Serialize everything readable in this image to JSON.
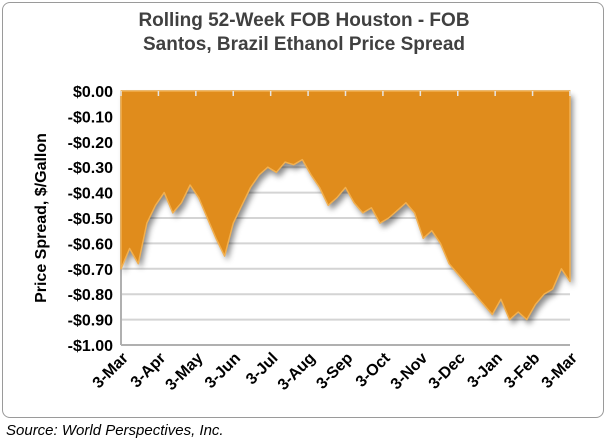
{
  "chart_data": {
    "type": "area",
    "title_line1": "Rolling 52-Week FOB Houston - FOB",
    "title_line2": "Santos, Brazil Ethanol Price Spread",
    "ylabel": "Price Spread, $/Gallon",
    "xlabel": "",
    "ylim": [
      -1.0,
      0.0
    ],
    "yticks": [
      "$0.00",
      "-$0.10",
      "-$0.20",
      "-$0.30",
      "-$0.40",
      "-$0.50",
      "-$0.60",
      "-$0.70",
      "-$0.80",
      "-$0.90",
      "-$1.00"
    ],
    "xticks": [
      "3-Mar",
      "3-Apr",
      "3-May",
      "3-Jun",
      "3-Jul",
      "3-Aug",
      "3-Sep",
      "3-Oct",
      "3-Nov",
      "3-Dec",
      "3-Jan",
      "3-Feb",
      "3-Mar"
    ],
    "grid": true,
    "fill_color": "#E08C1E",
    "values": [
      -0.7,
      -0.62,
      -0.68,
      -0.52,
      -0.45,
      -0.4,
      -0.48,
      -0.44,
      -0.37,
      -0.42,
      -0.5,
      -0.58,
      -0.65,
      -0.52,
      -0.45,
      -0.38,
      -0.33,
      -0.3,
      -0.32,
      -0.28,
      -0.29,
      -0.27,
      -0.33,
      -0.38,
      -0.45,
      -0.42,
      -0.38,
      -0.44,
      -0.48,
      -0.46,
      -0.52,
      -0.5,
      -0.47,
      -0.44,
      -0.48,
      -0.58,
      -0.55,
      -0.6,
      -0.68,
      -0.72,
      -0.76,
      -0.8,
      -0.84,
      -0.88,
      -0.82,
      -0.9,
      -0.87,
      -0.9,
      -0.84,
      -0.8,
      -0.78,
      -0.7,
      -0.75
    ]
  },
  "source": "Source: World Perspectives, Inc."
}
